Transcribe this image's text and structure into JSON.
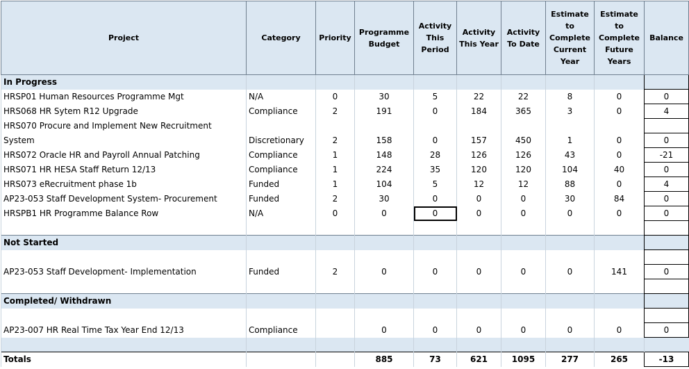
{
  "headers": {
    "project": "Project",
    "category": "Category",
    "priority": "Priority",
    "budget": "Programme Budget",
    "activity_period": "Activity This Period",
    "activity_year": "Activity This Year",
    "activity_date": "Activity To Date",
    "est_current": "Estimate to Complete Current Year",
    "est_future": "Estimate to Complete Future Years",
    "balance": "Balance"
  },
  "sections": {
    "in_progress": "In Progress",
    "not_started": "Not Started",
    "completed": "Completed/ Withdrawn"
  },
  "rows": [
    {
      "project": "HRSP01 Human Resources Programme Mgt",
      "category": "N/A",
      "priority": "0",
      "budget": "30",
      "period": "5",
      "year": "22",
      "date": "22",
      "est_cur": "8",
      "est_fut": "0",
      "balance": "0"
    },
    {
      "project": "HRS068 HR Sytem R12 Upgrade",
      "category": "Compliance",
      "priority": "2",
      "budget": "191",
      "period": "0",
      "year": "184",
      "date": "365",
      "est_cur": "3",
      "est_fut": "0",
      "balance": "4"
    },
    {
      "project_line1": "HRS070  Procure and Implement New Recruitment",
      "project_line2": "System",
      "category": "Discretionary",
      "priority": "2",
      "budget": "158",
      "period": "0",
      "year": "157",
      "date": "450",
      "est_cur": "1",
      "est_fut": "0",
      "balance": "0"
    },
    {
      "project": "HRS072 Oracle HR and Payroll Annual Patching",
      "category": "Compliance",
      "priority": "1",
      "budget": "148",
      "period": "28",
      "year": "126",
      "date": "126",
      "est_cur": "43",
      "est_fut": "0",
      "balance": "-21"
    },
    {
      "project": "HRS071 HR HESA Staff Return 12/13",
      "category": "Compliance",
      "priority": "1",
      "budget": "224",
      "period": "35",
      "year": "120",
      "date": "120",
      "est_cur": "104",
      "est_fut": "40",
      "balance": "0"
    },
    {
      "project": "HRS073 eRecruitment phase 1b",
      "category": "Funded",
      "priority": "1",
      "budget": "104",
      "period": "5",
      "year": "12",
      "date": "12",
      "est_cur": "88",
      "est_fut": "0",
      "balance": "4"
    },
    {
      "project": "AP23-053 Staff Development System- Procurement",
      "category": "Funded",
      "priority": "2",
      "budget": "30",
      "period": "0",
      "year": "0",
      "date": "0",
      "est_cur": "30",
      "est_fut": "84",
      "balance": "0"
    },
    {
      "project": "HRSPB1 HR Programme Balance Row",
      "category": "N/A",
      "priority": "0",
      "budget": "0",
      "period": "0",
      "year": "0",
      "date": "0",
      "est_cur": "0",
      "est_fut": "0",
      "balance": "0"
    }
  ],
  "not_started_rows": [
    {
      "project": "AP23-053 Staff Development- Implementation",
      "category": "Funded",
      "priority": "2",
      "budget": "0",
      "period": "0",
      "year": "0",
      "date": "0",
      "est_cur": "0",
      "est_fut": "141",
      "balance": "0"
    }
  ],
  "completed_rows": [
    {
      "project": "AP23-007 HR Real Time Tax Year End 12/13",
      "category": "Compliance",
      "priority": "",
      "budget": "0",
      "period": "0",
      "year": "0",
      "date": "0",
      "est_cur": "0",
      "est_fut": "0",
      "balance": "0"
    }
  ],
  "totals": {
    "label": "Totals",
    "budget": "885",
    "period": "73",
    "year": "621",
    "date": "1095",
    "est_cur": "277",
    "est_fut": "265",
    "balance": "-13"
  }
}
